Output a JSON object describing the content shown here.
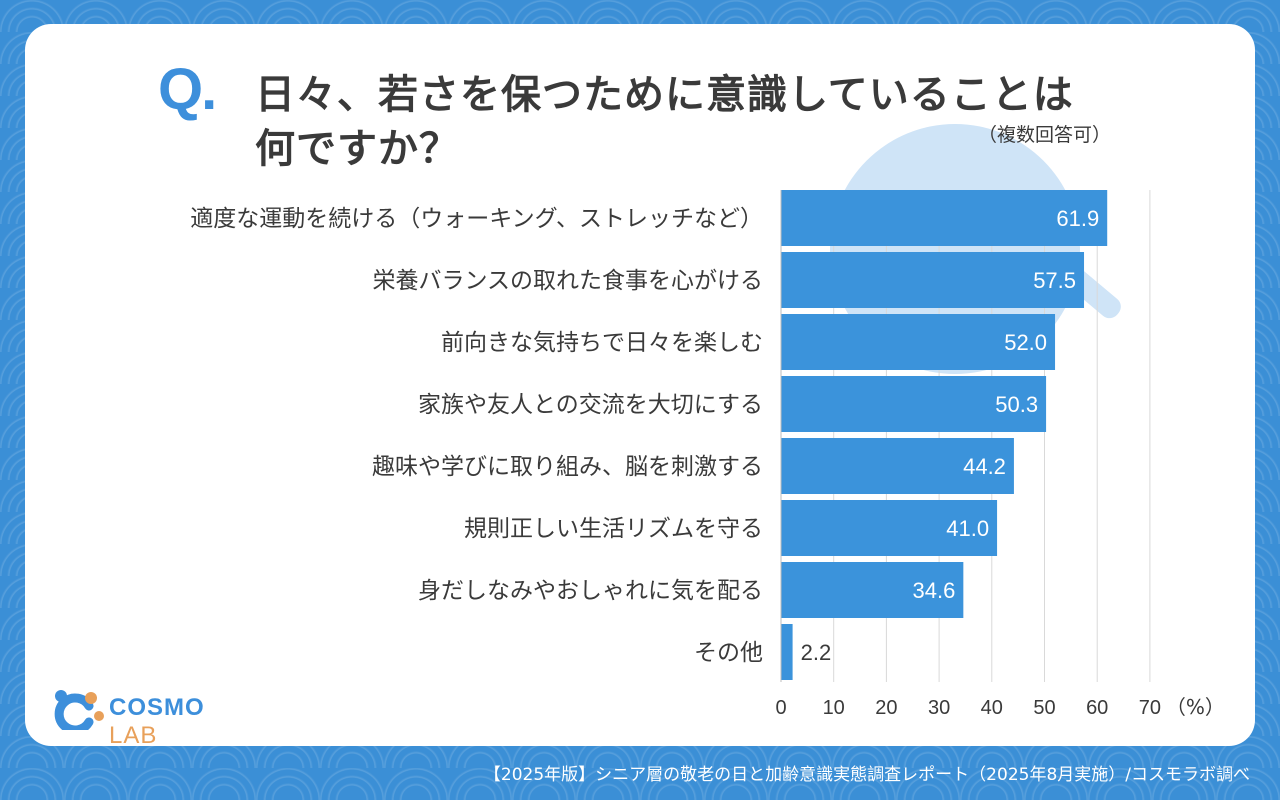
{
  "header": {
    "q_mark": "Q.",
    "title_line1": "日々、若さを保つために意識していることは",
    "title_line2": "何ですか？",
    "note": "（複数回答可）"
  },
  "logo": {
    "part1": "COSMO ",
    "part2": "LAB"
  },
  "footer": {
    "text": "【2025年版】シニア層の敬老の日と加齢意識実態調査レポート（2025年8月実施）/コスモラボ調べ"
  },
  "chart_data": {
    "type": "bar",
    "orientation": "horizontal",
    "categories": [
      "適度な運動を続ける（ウォーキング、ストレッチなど）",
      "栄養バランスの取れた食事を心がける",
      "前向きな気持ちで日々を楽しむ",
      "家族や友人との交流を大切にする",
      "趣味や学びに取り組み、脳を刺激する",
      "規則正しい生活リズムを守る",
      "身だしなみやおしゃれに気を配る",
      "その他"
    ],
    "values": [
      61.9,
      57.5,
      52.0,
      50.3,
      44.2,
      41.0,
      34.6,
      2.2
    ],
    "value_labels": [
      "61.9",
      "57.5",
      "52.0",
      "50.3",
      "44.2",
      "41.0",
      "34.6",
      "2.2"
    ],
    "xlim": [
      0,
      70
    ],
    "xticks": [
      0,
      10,
      20,
      30,
      40,
      50,
      60,
      70
    ],
    "tick_labels": [
      "0",
      "10",
      "20",
      "30",
      "40",
      "50",
      "60",
      "70"
    ],
    "unit": "（%）",
    "grid": true,
    "bar_color": "#3b93db"
  }
}
